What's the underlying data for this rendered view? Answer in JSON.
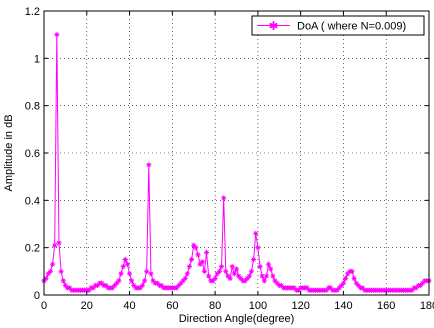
{
  "chart_data": {
    "type": "line",
    "title": "",
    "xlabel": "Direction Angle(degree)",
    "ylabel": "Amplitude in dB",
    "xlim": [
      0,
      180
    ],
    "ylim": [
      0,
      1.2
    ],
    "x_ticks": [
      "0",
      "20",
      "40",
      "60",
      "80",
      "100",
      "120",
      "140",
      "160",
      "180"
    ],
    "y_ticks": [
      "0",
      "0.2",
      "0.4",
      "0.6",
      "0.8",
      "1",
      "1.2"
    ],
    "grid": true,
    "legend_position": "top-right",
    "series": [
      {
        "name": "DoA ( where N=0.009)",
        "color": "#ff00ff",
        "marker": "star",
        "x": [
          0,
          1,
          2,
          3,
          4,
          5,
          6,
          7,
          8,
          9,
          10,
          11,
          12,
          13,
          14,
          15,
          16,
          17,
          18,
          19,
          20,
          21,
          22,
          23,
          24,
          25,
          26,
          27,
          28,
          29,
          30,
          31,
          32,
          33,
          34,
          35,
          36,
          37,
          38,
          39,
          40,
          41,
          42,
          43,
          44,
          45,
          46,
          47,
          48,
          49,
          50,
          51,
          52,
          53,
          54,
          55,
          56,
          57,
          58,
          59,
          60,
          61,
          62,
          63,
          64,
          65,
          66,
          67,
          68,
          69,
          70,
          71,
          72,
          73,
          74,
          75,
          76,
          77,
          78,
          79,
          80,
          81,
          82,
          83,
          84,
          85,
          86,
          87,
          88,
          89,
          90,
          91,
          92,
          93,
          94,
          95,
          96,
          97,
          98,
          99,
          100,
          101,
          102,
          103,
          104,
          105,
          106,
          107,
          108,
          109,
          110,
          111,
          112,
          113,
          114,
          115,
          116,
          117,
          118,
          119,
          120,
          121,
          122,
          123,
          124,
          125,
          126,
          127,
          128,
          129,
          130,
          131,
          132,
          133,
          134,
          135,
          136,
          137,
          138,
          139,
          140,
          141,
          142,
          143,
          144,
          145,
          146,
          147,
          148,
          149,
          150,
          151,
          152,
          153,
          154,
          155,
          156,
          157,
          158,
          159,
          160,
          161,
          162,
          163,
          164,
          165,
          166,
          167,
          168,
          169,
          170,
          171,
          172,
          173,
          174,
          175,
          176,
          177,
          178,
          179,
          180
        ],
        "y": [
          0.06,
          0.07,
          0.09,
          0.1,
          0.13,
          0.21,
          1.1,
          0.22,
          0.1,
          0.06,
          0.04,
          0.03,
          0.03,
          0.02,
          0.02,
          0.02,
          0.02,
          0.02,
          0.02,
          0.02,
          0.02,
          0.02,
          0.03,
          0.03,
          0.04,
          0.04,
          0.05,
          0.05,
          0.04,
          0.04,
          0.03,
          0.03,
          0.03,
          0.04,
          0.05,
          0.06,
          0.09,
          0.12,
          0.15,
          0.13,
          0.09,
          0.06,
          0.04,
          0.03,
          0.03,
          0.03,
          0.04,
          0.06,
          0.1,
          0.55,
          0.09,
          0.06,
          0.05,
          0.05,
          0.04,
          0.04,
          0.03,
          0.03,
          0.03,
          0.03,
          0.03,
          0.03,
          0.03,
          0.04,
          0.05,
          0.06,
          0.07,
          0.09,
          0.12,
          0.15,
          0.21,
          0.2,
          0.17,
          0.13,
          0.14,
          0.1,
          0.18,
          0.08,
          0.06,
          0.06,
          0.07,
          0.09,
          0.1,
          0.12,
          0.41,
          0.1,
          0.08,
          0.07,
          0.12,
          0.09,
          0.11,
          0.08,
          0.07,
          0.06,
          0.06,
          0.07,
          0.08,
          0.1,
          0.15,
          0.26,
          0.2,
          0.12,
          0.08,
          0.06,
          0.08,
          0.13,
          0.11,
          0.08,
          0.06,
          0.05,
          0.04,
          0.04,
          0.03,
          0.03,
          0.03,
          0.03,
          0.03,
          0.03,
          0.02,
          0.02,
          0.03,
          0.03,
          0.03,
          0.03,
          0.02,
          0.02,
          0.02,
          0.02,
          0.02,
          0.02,
          0.02,
          0.02,
          0.02,
          0.03,
          0.03,
          0.02,
          0.02,
          0.02,
          0.03,
          0.04,
          0.05,
          0.07,
          0.09,
          0.1,
          0.1,
          0.07,
          0.05,
          0.04,
          0.03,
          0.03,
          0.02,
          0.02,
          0.02,
          0.02,
          0.02,
          0.02,
          0.02,
          0.02,
          0.02,
          0.02,
          0.02,
          0.02,
          0.02,
          0.02,
          0.02,
          0.02,
          0.02,
          0.02,
          0.02,
          0.02,
          0.02,
          0.02,
          0.02,
          0.03,
          0.03,
          0.04,
          0.04,
          0.05,
          0.06,
          0.06,
          0.06
        ]
      }
    ]
  }
}
